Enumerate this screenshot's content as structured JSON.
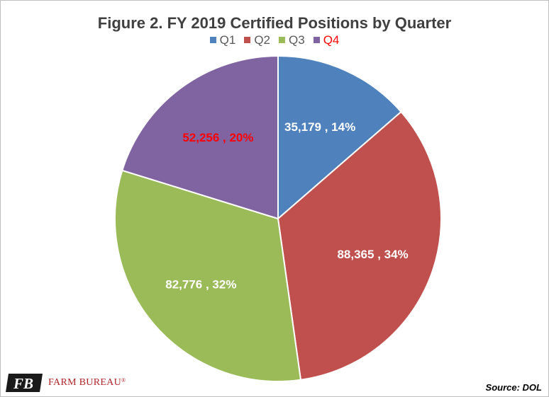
{
  "chart_data": {
    "type": "pie",
    "title": "Figure 2. FY 2019 Certified Positions by Quarter",
    "legend_position": "top",
    "categories": [
      "Q1",
      "Q2",
      "Q3",
      "Q4"
    ],
    "values": [
      35179,
      88365,
      82776,
      52256
    ],
    "percentages": [
      14,
      34,
      32,
      20
    ],
    "data_labels": [
      "35,179 , 14%",
      "88,365 , 34%",
      "82,776 , 32%",
      "52,256 , 20%"
    ],
    "colors": [
      "#4f81bd",
      "#c0504d",
      "#9bbb59",
      "#8064a2"
    ],
    "label_colors": [
      "#ffffff",
      "#ffffff",
      "#ffffff",
      "#ff0000"
    ],
    "legend_text_colors": [
      "#595959",
      "#595959",
      "#595959",
      "#ff0000"
    ]
  },
  "footer": {
    "logo_text": "FARM BUREAU",
    "logo_mark": "FB",
    "logo_reg": "®",
    "source": "Source: DOL"
  }
}
